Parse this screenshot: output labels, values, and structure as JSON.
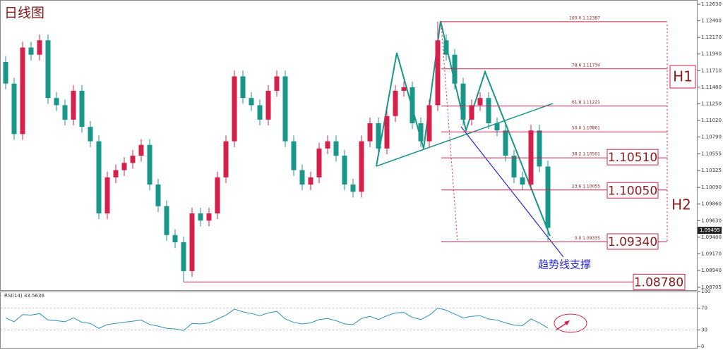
{
  "chart_data": [
    {
      "type": "candlestick",
      "title": "日线图",
      "open": [
        1.1183,
        1.1153,
        1.1083,
        1.1203,
        1.1193,
        1.1213,
        1.1133,
        1.1123,
        1.1103,
        1.1143,
        1.1093,
        1.1073,
        1.0973,
        1.1023,
        1.1033,
        1.1043,
        1.1053,
        1.1068,
        1.1013,
        1.0983,
        1.0943,
        1.0933,
        1.0893,
        1.0973,
        1.0963,
        1.0973,
        1.1023,
        1.1073,
        1.1163,
        1.1133,
        1.1123,
        1.1103,
        1.1143,
        1.1163,
        1.1073,
        1.1033,
        1.1013,
        1.1023,
        1.1063,
        1.1073,
        1.1053,
        1.1013,
        1.1003,
        1.1073,
        1.1098,
        1.1063,
        1.1108,
        1.1143,
        1.1148,
        1.1098,
        1.1073,
        1.1123,
        1.1213,
        1.1193,
        1.1153,
        1.1103,
        1.1123,
        1.1133,
        1.1098,
        1.1088,
        1.1053,
        1.1023,
        1.1013,
        1.1088,
        1.1038
      ],
      "high": [
        1.1191,
        1.1161,
        1.1211,
        1.1211,
        1.1221,
        1.1221,
        1.1141,
        1.1131,
        1.1151,
        1.1151,
        1.1101,
        1.1081,
        1.1031,
        1.1041,
        1.1051,
        1.1061,
        1.1076,
        1.1076,
        1.1021,
        1.0991,
        1.0951,
        1.0941,
        1.0981,
        1.0981,
        1.0981,
        1.1031,
        1.1081,
        1.1171,
        1.1171,
        1.1141,
        1.1131,
        1.1151,
        1.1171,
        1.1171,
        1.1081,
        1.1041,
        1.1031,
        1.1071,
        1.1081,
        1.1081,
        1.1061,
        1.1021,
        1.1081,
        1.1106,
        1.1106,
        1.1116,
        1.1151,
        1.1156,
        1.1156,
        1.1106,
        1.1131,
        1.1239,
        1.1221,
        1.1201,
        1.1161,
        1.1131,
        1.1141,
        1.1141,
        1.1106,
        1.1096,
        1.1061,
        1.1031,
        1.1096,
        1.1096,
        1.1046
      ],
      "low": [
        1.1145,
        1.1075,
        1.1075,
        1.1185,
        1.1185,
        1.1125,
        1.1115,
        1.1095,
        1.1095,
        1.1085,
        1.1065,
        1.0965,
        1.0965,
        1.1015,
        1.1025,
        1.1035,
        1.1045,
        1.1005,
        1.0975,
        1.0935,
        1.0925,
        1.0878,
        1.0885,
        1.0955,
        1.0955,
        1.0965,
        1.1015,
        1.1065,
        1.1125,
        1.1115,
        1.1095,
        1.1095,
        1.1135,
        1.1065,
        1.1025,
        1.1005,
        1.1005,
        1.1015,
        1.1055,
        1.1045,
        1.1005,
        1.0995,
        1.0995,
        1.1065,
        1.1055,
        1.1055,
        1.11,
        1.1135,
        1.109,
        1.1065,
        1.1065,
        1.1115,
        1.1185,
        1.1145,
        1.1095,
        1.1095,
        1.1115,
        1.109,
        1.108,
        1.1045,
        1.1015,
        1.1005,
        1.1005,
        1.103,
        1.0935
      ],
      "close": [
        1.1153,
        1.1083,
        1.1203,
        1.1193,
        1.1213,
        1.1133,
        1.1123,
        1.1103,
        1.1143,
        1.1093,
        1.1073,
        1.0973,
        1.1023,
        1.1033,
        1.1043,
        1.1053,
        1.1068,
        1.1013,
        1.0983,
        1.0943,
        1.0933,
        1.0893,
        1.0973,
        1.0963,
        1.0973,
        1.1023,
        1.1073,
        1.1163,
        1.1133,
        1.1123,
        1.1103,
        1.1143,
        1.1163,
        1.1073,
        1.1033,
        1.1013,
        1.1023,
        1.1063,
        1.1073,
        1.1053,
        1.1013,
        1.1003,
        1.1073,
        1.1098,
        1.1063,
        1.1108,
        1.1143,
        1.1148,
        1.1098,
        1.1073,
        1.1123,
        1.1213,
        1.1193,
        1.1153,
        1.1103,
        1.1123,
        1.1133,
        1.1098,
        1.1088,
        1.1053,
        1.1023,
        1.1013,
        1.1088,
        1.1038,
        1.0953
      ],
      "up_color": "#d4204a",
      "down_color": "#18968a",
      "ylim": [
        1.08666,
        1.12689
      ],
      "yticks": [
        {
          "value": 1.1263,
          "label": "1.12630"
        },
        {
          "value": 1.124,
          "label": "1.12400"
        },
        {
          "value": 1.1217,
          "label": "1.12170"
        },
        {
          "value": 1.1194,
          "label": "1.11940"
        },
        {
          "value": 1.1171,
          "label": "1.11710"
        },
        {
          "value": 1.1148,
          "label": "1.11480"
        },
        {
          "value": 1.1125,
          "label": "1.11250"
        },
        {
          "value": 1.1102,
          "label": "1.11020"
        },
        {
          "value": 1.1079,
          "label": "1.10790"
        },
        {
          "value": 1.10555,
          "label": "1.10555"
        },
        {
          "value": 1.10325,
          "label": "1.10325"
        },
        {
          "value": 1.1009,
          "label": "1.10090"
        },
        {
          "value": 1.0986,
          "label": "1.09860"
        },
        {
          "value": 1.0963,
          "label": "1.09630"
        },
        {
          "value": 1.094,
          "label": "1.09400"
        },
        {
          "value": 1.0917,
          "label": "1.09170"
        },
        {
          "value": 1.0894,
          "label": "1.08940"
        },
        {
          "value": 1.08705,
          "label": "1.08705"
        }
      ],
      "current_price": {
        "value": 1.09495,
        "label": "1.09495"
      },
      "fib_levels": [
        {
          "value": 1.12387,
          "label": "100.0  1.12387"
        },
        {
          "value": 1.11734,
          "label": "78.6  1.11734"
        },
        {
          "value": 1.11221,
          "label": "61.8  1.11221"
        },
        {
          "value": 1.10861,
          "label": "50.0  1.10861"
        },
        {
          "value": 1.10501,
          "label": "38.2  1.10501"
        },
        {
          "value": 1.10055,
          "label": "23.6  1.10055"
        },
        {
          "value": 1.09335,
          "label": "0.0  1.09335"
        }
      ],
      "price_labels": [
        {
          "value": 1.1051,
          "label": "1.10510"
        },
        {
          "value": 1.1005,
          "label": "1.10050"
        },
        {
          "value": 1.0934,
          "label": "1.09340"
        }
      ],
      "support_line": {
        "value": 1.0878,
        "label": "1.08780"
      },
      "annotations": {
        "h1": "H1",
        "h2": "H2",
        "trend_support": "趋势线支撑"
      }
    },
    {
      "type": "line",
      "title": "RSI(14) 33.5636",
      "color": "#2a8fbd",
      "values": [
        52,
        45,
        58,
        57,
        60,
        48,
        47,
        45,
        52,
        44,
        42,
        33,
        40,
        42,
        44,
        46,
        48,
        40,
        37,
        33,
        32,
        29,
        42,
        41,
        43,
        50,
        57,
        68,
        63,
        60,
        56,
        61,
        64,
        50,
        44,
        41,
        43,
        49,
        51,
        47,
        41,
        40,
        51,
        55,
        49,
        56,
        61,
        62,
        53,
        49,
        57,
        70,
        66,
        59,
        52,
        55,
        56,
        50,
        48,
        43,
        39,
        38,
        50,
        43,
        33.5636
      ],
      "ylim": [
        0,
        100
      ],
      "yticks": [
        100,
        70,
        30,
        0
      ],
      "levels": [
        70,
        30
      ]
    }
  ]
}
